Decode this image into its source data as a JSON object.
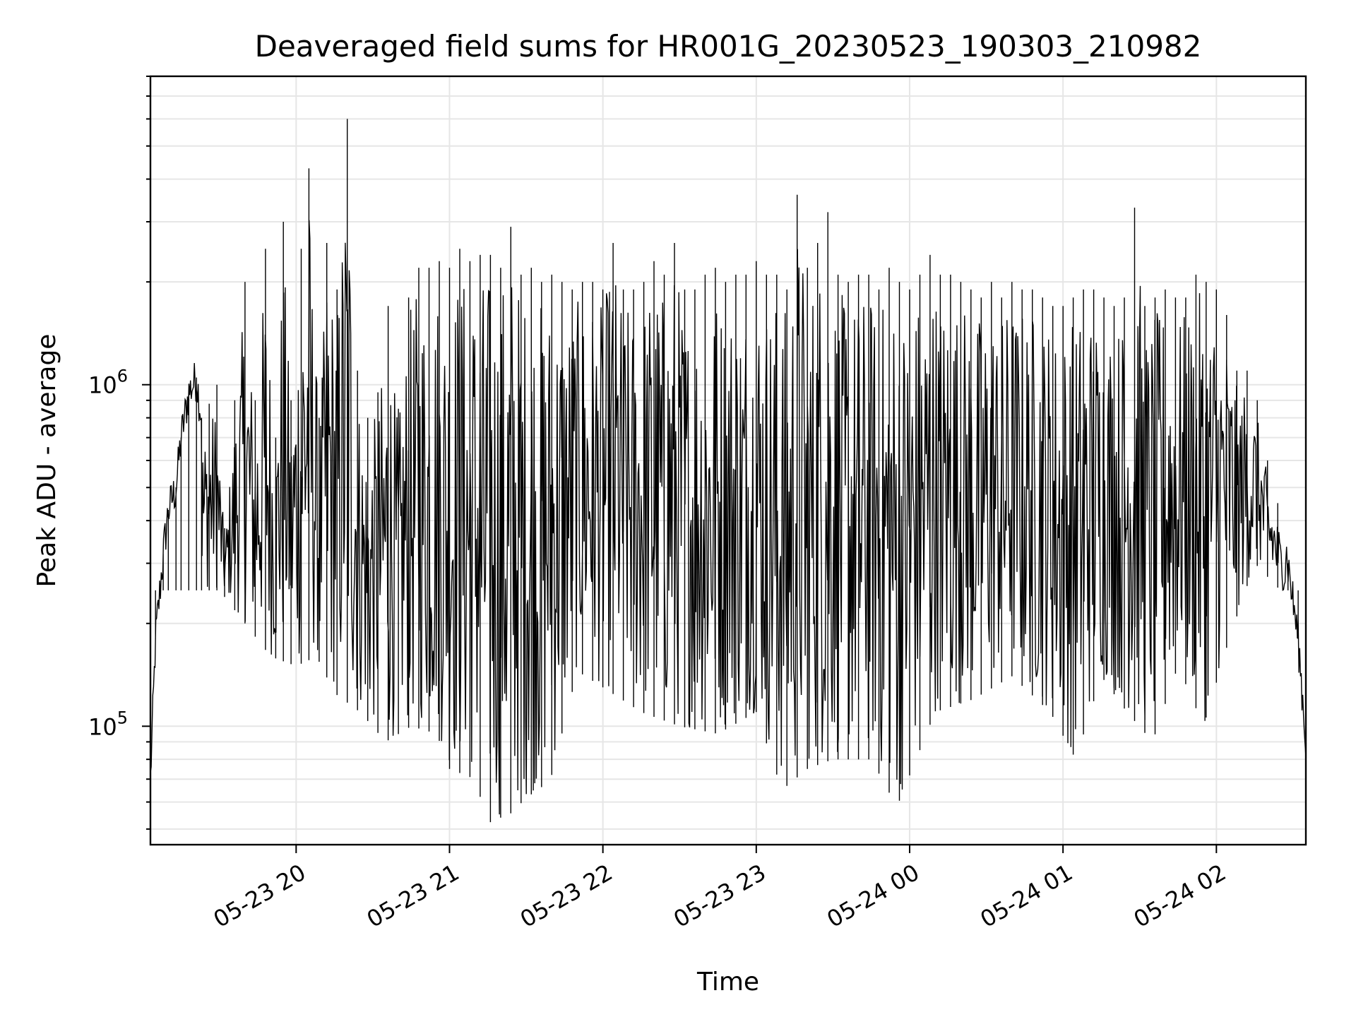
{
  "chart_data": {
    "type": "line",
    "title": "Deaveraged field sums for HR001G_20230523_190303_210982",
    "xlabel": "Time",
    "ylabel": "Peak ADU - average",
    "xlim": [
      "2023-05-23 19:03",
      "2023-05-24 02:35"
    ],
    "ylim": [
      45000,
      8000000
    ],
    "yscale": "log",
    "grid": true,
    "x_ticks": [
      "2023-05-23 20:00",
      "2023-05-23 21:00",
      "2023-05-23 22:00",
      "2023-05-23 23:00",
      "2023-05-24 00:00",
      "2023-05-24 01:00",
      "2023-05-24 02:00"
    ],
    "x_tick_labels": [
      "05-23 20",
      "05-23 21",
      "05-23 22",
      "05-23 23",
      "05-24 00",
      "05-24 01",
      "05-24 02"
    ],
    "y_ticks": [
      100000,
      1000000
    ],
    "y_tick_labels": [
      {
        "base": "10",
        "exp": "5"
      },
      {
        "base": "10",
        "exp": "6"
      }
    ],
    "series": [
      {
        "color": "#000000",
        "points": [
          [
            "2023-05-23 19:03",
            70000
          ],
          [
            "2023-05-23 19:05",
            180000
          ],
          [
            "2023-05-23 19:08",
            320000
          ],
          [
            "2023-05-23 19:10",
            430000
          ],
          [
            "2023-05-23 19:13",
            500000
          ],
          [
            "2023-05-23 19:15",
            700000
          ],
          [
            "2023-05-23 19:18",
            950000
          ],
          [
            "2023-05-23 19:21",
            1050000
          ],
          [
            "2023-05-23 19:23",
            800000
          ],
          [
            "2023-05-23 19:26",
            880000
          ],
          [
            "2023-05-23 19:29",
            1000000
          ],
          [
            "2023-05-23 19:32",
            380000
          ],
          [
            "2023-05-23 19:36",
            900000
          ],
          [
            "2023-05-23 19:40",
            2000000
          ],
          [
            "2023-05-23 19:44",
            900000
          ],
          [
            "2023-05-23 19:48",
            2500000
          ],
          [
            "2023-05-23 19:52",
            700000
          ],
          [
            "2023-05-23 19:55",
            3000000
          ],
          [
            "2023-05-23 19:58",
            900000
          ],
          [
            "2023-05-23 20:02",
            2500000
          ],
          [
            "2023-05-23 20:05",
            4300000
          ],
          [
            "2023-05-23 20:09",
            800000
          ],
          [
            "2023-05-23 20:12",
            2600000
          ],
          [
            "2023-05-23 20:16",
            1900000
          ],
          [
            "2023-05-23 20:20",
            6000000
          ],
          [
            "2023-05-23 20:24",
            1100000
          ],
          [
            "2023-05-23 20:28",
            800000
          ],
          [
            "2023-05-23 20:32",
            950000
          ],
          [
            "2023-05-23 20:36",
            1700000
          ],
          [
            "2023-05-23 20:40",
            850000
          ],
          [
            "2023-05-23 20:44",
            1800000
          ],
          [
            "2023-05-23 20:48",
            2200000
          ],
          [
            "2023-05-23 20:52",
            2200000
          ],
          [
            "2023-05-23 20:56",
            2300000
          ],
          [
            "2023-05-23 21:00",
            2200000
          ],
          [
            "2023-05-23 21:04",
            2500000
          ],
          [
            "2023-05-23 21:08",
            2300000
          ],
          [
            "2023-05-23 21:12",
            2400000
          ],
          [
            "2023-05-23 21:16",
            2400000
          ],
          [
            "2023-05-23 21:20",
            2200000
          ],
          [
            "2023-05-23 21:24",
            2900000
          ],
          [
            "2023-05-23 21:28",
            2100000
          ],
          [
            "2023-05-23 21:32",
            2200000
          ],
          [
            "2023-05-23 21:36",
            2000000
          ],
          [
            "2023-05-23 21:40",
            2100000
          ],
          [
            "2023-05-23 21:44",
            2000000
          ],
          [
            "2023-05-23 21:48",
            1900000
          ],
          [
            "2023-05-23 21:52",
            2000000
          ],
          [
            "2023-05-23 21:56",
            2000000
          ],
          [
            "2023-05-23 22:00",
            1900000
          ],
          [
            "2023-05-23 22:04",
            2600000
          ],
          [
            "2023-05-23 22:08",
            1900000
          ],
          [
            "2023-05-23 22:12",
            1900000
          ],
          [
            "2023-05-23 22:16",
            2000000
          ],
          [
            "2023-05-23 22:20",
            2300000
          ],
          [
            "2023-05-23 22:24",
            2100000
          ],
          [
            "2023-05-23 22:28",
            2600000
          ],
          [
            "2023-05-23 22:32",
            1900000
          ],
          [
            "2023-05-23 22:36",
            1900000
          ],
          [
            "2023-05-23 22:40",
            2100000
          ],
          [
            "2023-05-23 22:44",
            2200000
          ],
          [
            "2023-05-23 22:48",
            2000000
          ],
          [
            "2023-05-23 22:52",
            2100000
          ],
          [
            "2023-05-23 22:56",
            2100000
          ],
          [
            "2023-05-23 23:00",
            2300000
          ],
          [
            "2023-05-23 23:04",
            2100000
          ],
          [
            "2023-05-23 23:08",
            2100000
          ],
          [
            "2023-05-23 23:12",
            1900000
          ],
          [
            "2023-05-23 23:16",
            3600000
          ],
          [
            "2023-05-23 23:20",
            2200000
          ],
          [
            "2023-05-23 23:24",
            2600000
          ],
          [
            "2023-05-23 23:28",
            3200000
          ],
          [
            "2023-05-23 23:32",
            2100000
          ],
          [
            "2023-05-23 23:36",
            2000000
          ],
          [
            "2023-05-23 23:40",
            2100000
          ],
          [
            "2023-05-23 23:44",
            2100000
          ],
          [
            "2023-05-23 23:48",
            1900000
          ],
          [
            "2023-05-23 23:52",
            2200000
          ],
          [
            "2023-05-23 23:56",
            2000000
          ],
          [
            "2023-05-24 00:00",
            1900000
          ],
          [
            "2023-05-24 00:04",
            2100000
          ],
          [
            "2023-05-24 00:08",
            2400000
          ],
          [
            "2023-05-24 00:12",
            2100000
          ],
          [
            "2023-05-24 00:16",
            2100000
          ],
          [
            "2023-05-24 00:20",
            2000000
          ],
          [
            "2023-05-24 00:24",
            1900000
          ],
          [
            "2023-05-24 00:28",
            1800000
          ],
          [
            "2023-05-24 00:32",
            2000000
          ],
          [
            "2023-05-24 00:36",
            1800000
          ],
          [
            "2023-05-24 00:40",
            2000000
          ],
          [
            "2023-05-24 00:44",
            1900000
          ],
          [
            "2023-05-24 00:48",
            1900000
          ],
          [
            "2023-05-24 00:52",
            1800000
          ],
          [
            "2023-05-24 00:56",
            1700000
          ],
          [
            "2023-05-24 01:00",
            1700000
          ],
          [
            "2023-05-24 01:04",
            1800000
          ],
          [
            "2023-05-24 01:08",
            1900000
          ],
          [
            "2023-05-24 01:12",
            1900000
          ],
          [
            "2023-05-24 01:16",
            1800000
          ],
          [
            "2023-05-24 01:20",
            1700000
          ],
          [
            "2023-05-24 01:24",
            1800000
          ],
          [
            "2023-05-24 01:28",
            3300000
          ],
          [
            "2023-05-24 01:32",
            1700000
          ],
          [
            "2023-05-24 01:36",
            1800000
          ],
          [
            "2023-05-24 01:40",
            1900000
          ],
          [
            "2023-05-24 01:44",
            1800000
          ],
          [
            "2023-05-24 01:48",
            1800000
          ],
          [
            "2023-05-24 01:52",
            2100000
          ],
          [
            "2023-05-24 01:56",
            2000000
          ],
          [
            "2023-05-24 02:00",
            1900000
          ],
          [
            "2023-05-24 02:04",
            1600000
          ],
          [
            "2023-05-24 02:08",
            1100000
          ],
          [
            "2023-05-24 02:12",
            1100000
          ],
          [
            "2023-05-24 02:16",
            900000
          ],
          [
            "2023-05-24 02:20",
            600000
          ],
          [
            "2023-05-24 02:24",
            450000
          ],
          [
            "2023-05-24 02:28",
            300000
          ],
          [
            "2023-05-24 02:32",
            180000
          ],
          [
            "2023-05-24 02:35",
            90000
          ]
        ],
        "lows": [
          [
            "2023-05-23 19:30",
            250000
          ],
          [
            "2023-05-23 19:40",
            200000
          ],
          [
            "2023-05-23 19:50",
            160000
          ],
          [
            "2023-05-23 20:00",
            150000
          ],
          [
            "2023-05-23 20:08",
            160000
          ],
          [
            "2023-05-23 20:15",
            125000
          ],
          [
            "2023-05-23 20:25",
            110000
          ],
          [
            "2023-05-23 20:35",
            90000
          ],
          [
            "2023-05-23 20:45",
            100000
          ],
          [
            "2023-05-23 20:55",
            95000
          ],
          [
            "2023-05-23 21:00",
            75000
          ],
          [
            "2023-05-23 21:10",
            70000
          ],
          [
            "2023-05-23 21:15",
            52000
          ],
          [
            "2023-05-23 21:20",
            54000
          ],
          [
            "2023-05-23 21:25",
            56000
          ],
          [
            "2023-05-23 21:30",
            62000
          ],
          [
            "2023-05-23 21:35",
            65000
          ],
          [
            "2023-05-23 21:40",
            72000
          ],
          [
            "2023-05-23 21:50",
            145000
          ],
          [
            "2023-05-23 22:00",
            130000
          ],
          [
            "2023-05-23 22:15",
            110000
          ],
          [
            "2023-05-23 22:30",
            100000
          ],
          [
            "2023-05-23 22:45",
            95000
          ],
          [
            "2023-05-23 23:00",
            110000
          ],
          [
            "2023-05-23 23:10",
            65000
          ],
          [
            "2023-05-23 23:20",
            75000
          ],
          [
            "2023-05-23 23:30",
            80000
          ],
          [
            "2023-05-23 23:45",
            80000
          ],
          [
            "2023-05-23 23:55",
            58000
          ],
          [
            "2023-05-24 00:10",
            110000
          ],
          [
            "2023-05-24 00:25",
            120000
          ],
          [
            "2023-05-24 00:40",
            140000
          ],
          [
            "2023-05-24 00:55",
            110000
          ],
          [
            "2023-05-24 01:05",
            80000
          ],
          [
            "2023-05-24 01:15",
            140000
          ],
          [
            "2023-05-24 01:25",
            110000
          ],
          [
            "2023-05-24 01:35",
            90000
          ],
          [
            "2023-05-24 01:45",
            150000
          ],
          [
            "2023-05-24 01:55",
            100000
          ],
          [
            "2023-05-24 02:05",
            180000
          ],
          [
            "2023-05-24 02:15",
            300000
          ],
          [
            "2023-05-24 02:25",
            250000
          ]
        ]
      }
    ]
  }
}
